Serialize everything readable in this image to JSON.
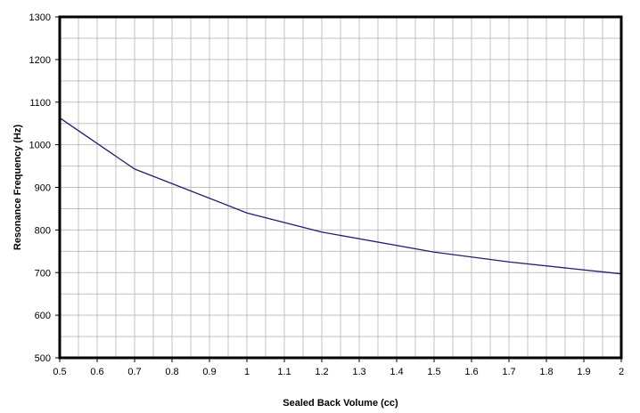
{
  "chart_data": {
    "type": "line",
    "title": "",
    "xlabel": "Sealed Back Volume (cc)",
    "ylabel": "Resonance Frequency (Hz)",
    "xlim": [
      0.5,
      2.0
    ],
    "ylim": [
      500,
      1300
    ],
    "x_ticks": [
      0.5,
      0.6,
      0.7,
      0.8,
      0.9,
      1,
      1.1,
      1.2,
      1.3,
      1.4,
      1.5,
      1.6,
      1.7,
      1.8,
      1.9,
      2
    ],
    "x_tick_labels": [
      "0.5",
      "0.6",
      "0.7",
      "0.8",
      "0.9",
      "1",
      "1.1",
      "1.2",
      "1.3",
      "1.4",
      "1.5",
      "1.6",
      "1.7",
      "1.8",
      "1.9",
      "2"
    ],
    "y_ticks": [
      500,
      600,
      700,
      800,
      900,
      1000,
      1100,
      1200,
      1300
    ],
    "y_tick_labels": [
      "500",
      "600",
      "700",
      "800",
      "900",
      "1000",
      "1100",
      "1200",
      "1300"
    ],
    "grid": true,
    "minor_grid_x_step": 0.05,
    "minor_grid_y_step": 50,
    "series": [
      {
        "color": "#1f1f6e",
        "x": [
          0.5,
          0.7,
          1.0,
          1.2,
          1.5,
          1.7,
          2.0
        ],
        "y": [
          1063,
          943,
          840,
          795,
          748,
          725,
          697
        ]
      }
    ],
    "colors": {
      "plot_border": "#000000",
      "grid": "#c0c0c0",
      "background": "#ffffff"
    }
  }
}
